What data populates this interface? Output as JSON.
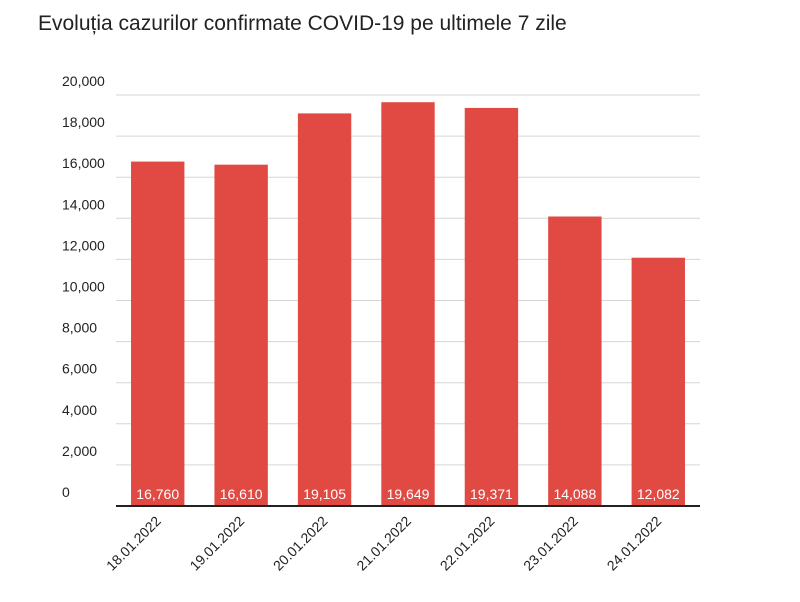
{
  "chart_data": {
    "type": "bar",
    "title": "Evoluția cazurilor confirmate COVID-19 pe ultimele 7 zile",
    "categories": [
      "18.01.2022",
      "19.01.2022",
      "20.01.2022",
      "21.01.2022",
      "22.01.2022",
      "23.01.2022",
      "24.01.2022"
    ],
    "values": [
      16760,
      16610,
      19105,
      19649,
      19371,
      14088,
      12082
    ],
    "value_labels": [
      "16,760",
      "16,610",
      "19,105",
      "19,649",
      "19,371",
      "14,088",
      "12,082"
    ],
    "color": "#e04a43",
    "ylim": [
      0,
      20000
    ],
    "yticks": [
      0,
      {
        "value": 2000,
        "label": "2,000"
      },
      {
        "value": 4000,
        "label": "4,000"
      },
      {
        "value": 6000,
        "label": "6,000"
      },
      {
        "value": 8000,
        "label": "8,000"
      },
      {
        "value": 10000,
        "label": "10,000"
      },
      {
        "value": 12000,
        "label": "12,000"
      },
      {
        "value": 14000,
        "label": "14,000"
      },
      {
        "value": 16000,
        "label": "16,000"
      },
      {
        "value": 18000,
        "label": "18,000"
      },
      {
        "value": 20000,
        "label": "20,000"
      }
    ],
    "grid": true
  }
}
